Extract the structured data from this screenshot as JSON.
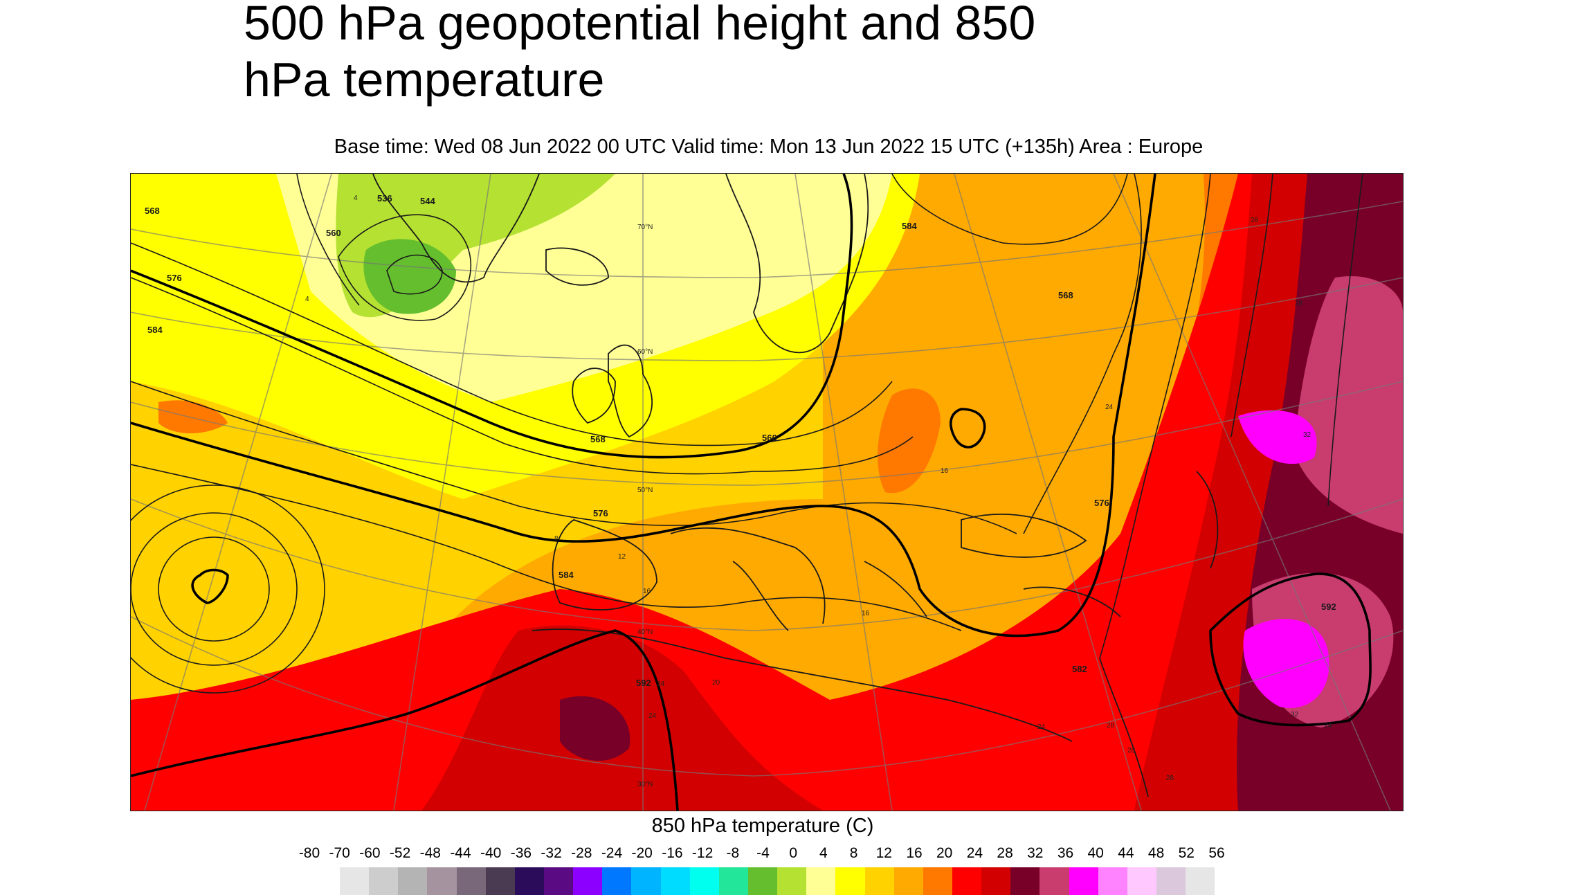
{
  "title_line1": "500 hPa geopotential height and 850",
  "title_line2": "hPa temperature",
  "subtitle": "Base time: Wed 08 Jun 2022 00 UTC Valid time: Mon 13 Jun 2022 15 UTC (+135h) Area : Europe",
  "legend": {
    "title": "850 hPa temperature (C)",
    "ticks": [
      "-80",
      "-70",
      "-60",
      "-52",
      "-48",
      "-44",
      "-40",
      "-36",
      "-32",
      "-28",
      "-24",
      "-20",
      "-16",
      "-12",
      "-8",
      "-4",
      "0",
      "4",
      "8",
      "12",
      "16",
      "20",
      "24",
      "28",
      "32",
      "36",
      "40",
      "44",
      "48",
      "52",
      "56"
    ],
    "colors": [
      "#e6e6e6",
      "#cdcdcd",
      "#b4b4b4",
      "#a5949f",
      "#78687a",
      "#4a3a52",
      "#2a0c5a",
      "#5a0a82",
      "#8c00ff",
      "#0078ff",
      "#00b4ff",
      "#00dcff",
      "#00ffee",
      "#22e69a",
      "#64be2e",
      "#b4e132",
      "#ffff96",
      "#ffff00",
      "#ffd200",
      "#ffaa00",
      "#ff7800",
      "#ff0000",
      "#d20000",
      "#780028",
      "#c83c6e",
      "#ff00ff",
      "#ff82ff",
      "#ffc8ff",
      "#dcc8dc",
      "#e6e6e6"
    ]
  },
  "map": {
    "latitude_labels": [
      "70°N",
      "60°N",
      "50°N",
      "40°N",
      "30°N"
    ],
    "height_labels": [
      "568",
      "576",
      "584",
      "560",
      "536",
      "544",
      "568",
      "576",
      "584",
      "560",
      "568",
      "576",
      "584",
      "592",
      "582",
      "592"
    ],
    "temp_labels": [
      "4",
      "4",
      "8",
      "12",
      "16",
      "16",
      "16",
      "24",
      "24",
      "20",
      "24",
      "28",
      "28",
      "28",
      "24",
      "28",
      "28",
      "32",
      "32",
      "24"
    ]
  }
}
